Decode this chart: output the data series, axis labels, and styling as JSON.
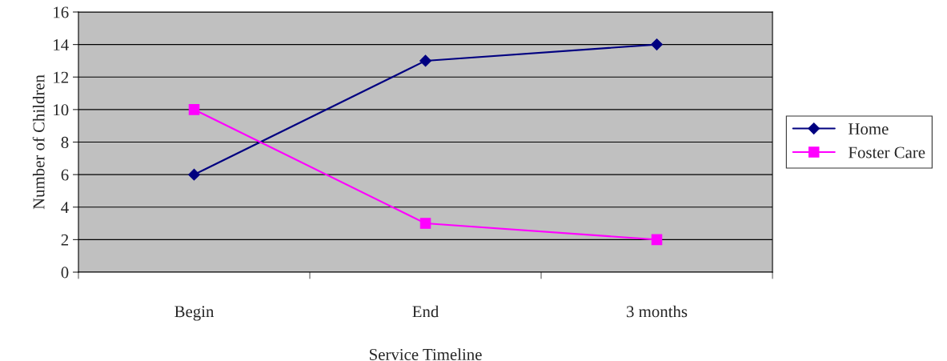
{
  "chart_data": {
    "type": "line",
    "xlabel": "Service Timeline",
    "ylabel": "Number of Children",
    "categories": [
      "Begin",
      "End",
      "3 months"
    ],
    "series": [
      {
        "name": "Home",
        "color": "#000080",
        "marker": "diamond",
        "values": [
          6,
          13,
          14
        ]
      },
      {
        "name": "Foster Care",
        "color": "#ff00ff",
        "marker": "square",
        "values": [
          10,
          3,
          2
        ]
      }
    ],
    "ylim": [
      0,
      16
    ],
    "yticks": [
      0,
      2,
      4,
      6,
      8,
      10,
      12,
      14,
      16
    ],
    "grid": "y",
    "legend": "right",
    "line_style": "solid"
  }
}
